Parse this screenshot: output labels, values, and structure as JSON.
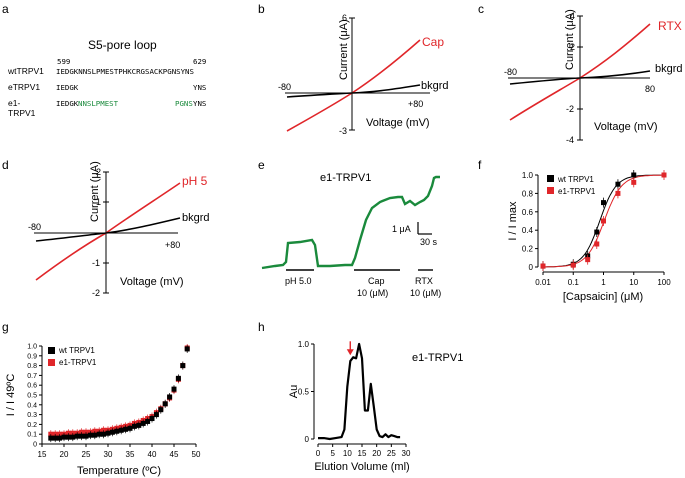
{
  "panel_letters": [
    "a",
    "b",
    "c",
    "d",
    "e",
    "f",
    "g",
    "h"
  ],
  "panel_a": {
    "title": "S5-pore loop",
    "num_start": "599",
    "num_end": "629",
    "rows": [
      {
        "name": "wtTRPV1",
        "seq_black": "IEDGKNNSLPMESTPHKCRGSACKPGNSYNS",
        "seq_green": "",
        "seq_tail": ""
      },
      {
        "name": "eTRPV1",
        "seq_black": "IEDGK",
        "seq_green": "",
        "seq_tail": "YNS"
      },
      {
        "name": "e1-TRPV1",
        "seq_black": "IEDGK",
        "seq_green": "NNSLPMEST",
        "seq_green2": "PGNS",
        "seq_tail": "YNS"
      }
    ]
  },
  "panel_b": {
    "ylabel": "Current (μA)",
    "xlabel": "Voltage (mV)",
    "ytop": "6",
    "ybottom": "-3",
    "xleft": "-80",
    "xright": "+80",
    "label_red": "Cap",
    "label_black": "bkgrd"
  },
  "panel_c": {
    "ylabel": "Current (μA)",
    "xlabel": "Voltage (mV)",
    "ytop": "4",
    "ymid1": "2",
    "ymid2": "-2",
    "ybottom": "-4",
    "xleft": "-80",
    "xright": "80",
    "label_red": "RTX",
    "label_black": "bkgrd"
  },
  "panel_d": {
    "ylabel": "Current (μA)",
    "xlabel": "Voltage (mV)",
    "ytop": "2",
    "ymid1": "1",
    "ymid2": "-1",
    "ybottom": "-2",
    "xleft": "-80",
    "xright": "+80",
    "label_red": "pH 5",
    "label_black": "bkgrd"
  },
  "panel_e": {
    "title": "e1-TRPV1",
    "scale_y": "1 μA",
    "scale_x": "30 s",
    "stim1": "pH 5.0",
    "stim2a": "Cap",
    "stim2b": "10 (μM)",
    "stim3a": "RTX",
    "stim3b": "10 (μM)"
  },
  "colors": {
    "red": "#e0262a",
    "green": "#1a8a3c",
    "black": "#000000"
  },
  "chart_data": [
    {
      "type": "line",
      "panel": "f",
      "xlabel": "[Capsaicin] (μM)",
      "ylabel": "I / I max",
      "xscale": "log",
      "xlim": [
        0.01,
        100
      ],
      "ylim": [
        0,
        1.0
      ],
      "xticks": [
        "0.01",
        "0.1",
        "1",
        "10",
        "100"
      ],
      "yticks": [
        "0",
        "0.2",
        "0.4",
        "0.6",
        "0.8",
        "1.0"
      ],
      "series": [
        {
          "name": "wt TRPV1",
          "color": "#000000",
          "x": [
            0.01,
            0.1,
            0.3,
            0.6,
            1,
            3,
            10
          ],
          "y": [
            0.01,
            0.03,
            0.12,
            0.38,
            0.7,
            0.9,
            1.0
          ]
        },
        {
          "name": "e1-TRPV1",
          "color": "#e0262a",
          "x": [
            0.01,
            0.1,
            0.3,
            0.6,
            1,
            3,
            10,
            100
          ],
          "y": [
            0.01,
            0.02,
            0.08,
            0.25,
            0.5,
            0.8,
            0.92,
            1.0
          ]
        }
      ]
    },
    {
      "type": "scatter",
      "panel": "g",
      "xlabel": "Temperature (ºC)",
      "ylabel": "I / I 49ºC",
      "xlim": [
        15,
        50
      ],
      "ylim": [
        0,
        1.0
      ],
      "xticks": [
        "15",
        "20",
        "25",
        "30",
        "35",
        "40",
        "45",
        "50"
      ],
      "yticks": [
        "0",
        "0.1",
        "0.2",
        "0.3",
        "0.4",
        "0.5",
        "0.6",
        "0.7",
        "0.8",
        "0.9",
        "1.0"
      ],
      "series": [
        {
          "name": "wt TRPV1",
          "color": "#000000",
          "x": [
            17,
            18,
            19,
            20,
            21,
            22,
            23,
            24,
            25,
            26,
            27,
            28,
            29,
            30,
            31,
            32,
            33,
            34,
            35,
            36,
            37,
            38,
            39,
            40,
            41,
            42,
            43,
            44,
            45,
            46,
            47,
            48
          ],
          "y": [
            0.06,
            0.06,
            0.06,
            0.07,
            0.07,
            0.07,
            0.08,
            0.08,
            0.08,
            0.09,
            0.09,
            0.1,
            0.1,
            0.11,
            0.12,
            0.13,
            0.14,
            0.15,
            0.16,
            0.18,
            0.19,
            0.21,
            0.23,
            0.26,
            0.3,
            0.35,
            0.41,
            0.48,
            0.56,
            0.67,
            0.8,
            0.97
          ]
        },
        {
          "name": "e1-TRPV1",
          "color": "#e0262a",
          "x": [
            17,
            18,
            19,
            20,
            21,
            22,
            23,
            24,
            25,
            26,
            27,
            28,
            29,
            30,
            31,
            32,
            33,
            34,
            35,
            36,
            37,
            38,
            39,
            40,
            41,
            42,
            43,
            44,
            45,
            46,
            47,
            48
          ],
          "y": [
            0.1,
            0.1,
            0.1,
            0.1,
            0.11,
            0.11,
            0.11,
            0.12,
            0.12,
            0.12,
            0.13,
            0.13,
            0.14,
            0.14,
            0.15,
            0.16,
            0.17,
            0.18,
            0.19,
            0.21,
            0.22,
            0.24,
            0.26,
            0.28,
            0.32,
            0.36,
            0.41,
            0.47,
            0.55,
            0.66,
            0.8,
            0.98
          ]
        }
      ]
    },
    {
      "type": "line",
      "panel": "h",
      "title": "e1-TRPV1",
      "xlabel": "Elution Volume (ml)",
      "ylabel": "Au",
      "xlim": [
        0,
        30
      ],
      "ylim": [
        0,
        1.0
      ],
      "xticks": [
        "0",
        "5",
        "10",
        "15",
        "20",
        "25",
        "30"
      ],
      "yticks": [
        "0",
        "0.5",
        "1.0"
      ],
      "series": [
        {
          "color": "#000000",
          "x": [
            0,
            2,
            4,
            6,
            8,
            9,
            10,
            11,
            12,
            13,
            14,
            15,
            16,
            17,
            18,
            19,
            20,
            21,
            22,
            23,
            24,
            25,
            26,
            27,
            28
          ],
          "y": [
            0.01,
            0.01,
            0.0,
            0.01,
            0.02,
            0.1,
            0.55,
            0.82,
            0.86,
            0.85,
            1.0,
            0.85,
            0.3,
            0.3,
            0.58,
            0.35,
            0.1,
            0.03,
            0.02,
            0.05,
            0.02,
            0.04,
            0.03,
            0.02,
            0.02
          ]
        }
      ]
    }
  ]
}
